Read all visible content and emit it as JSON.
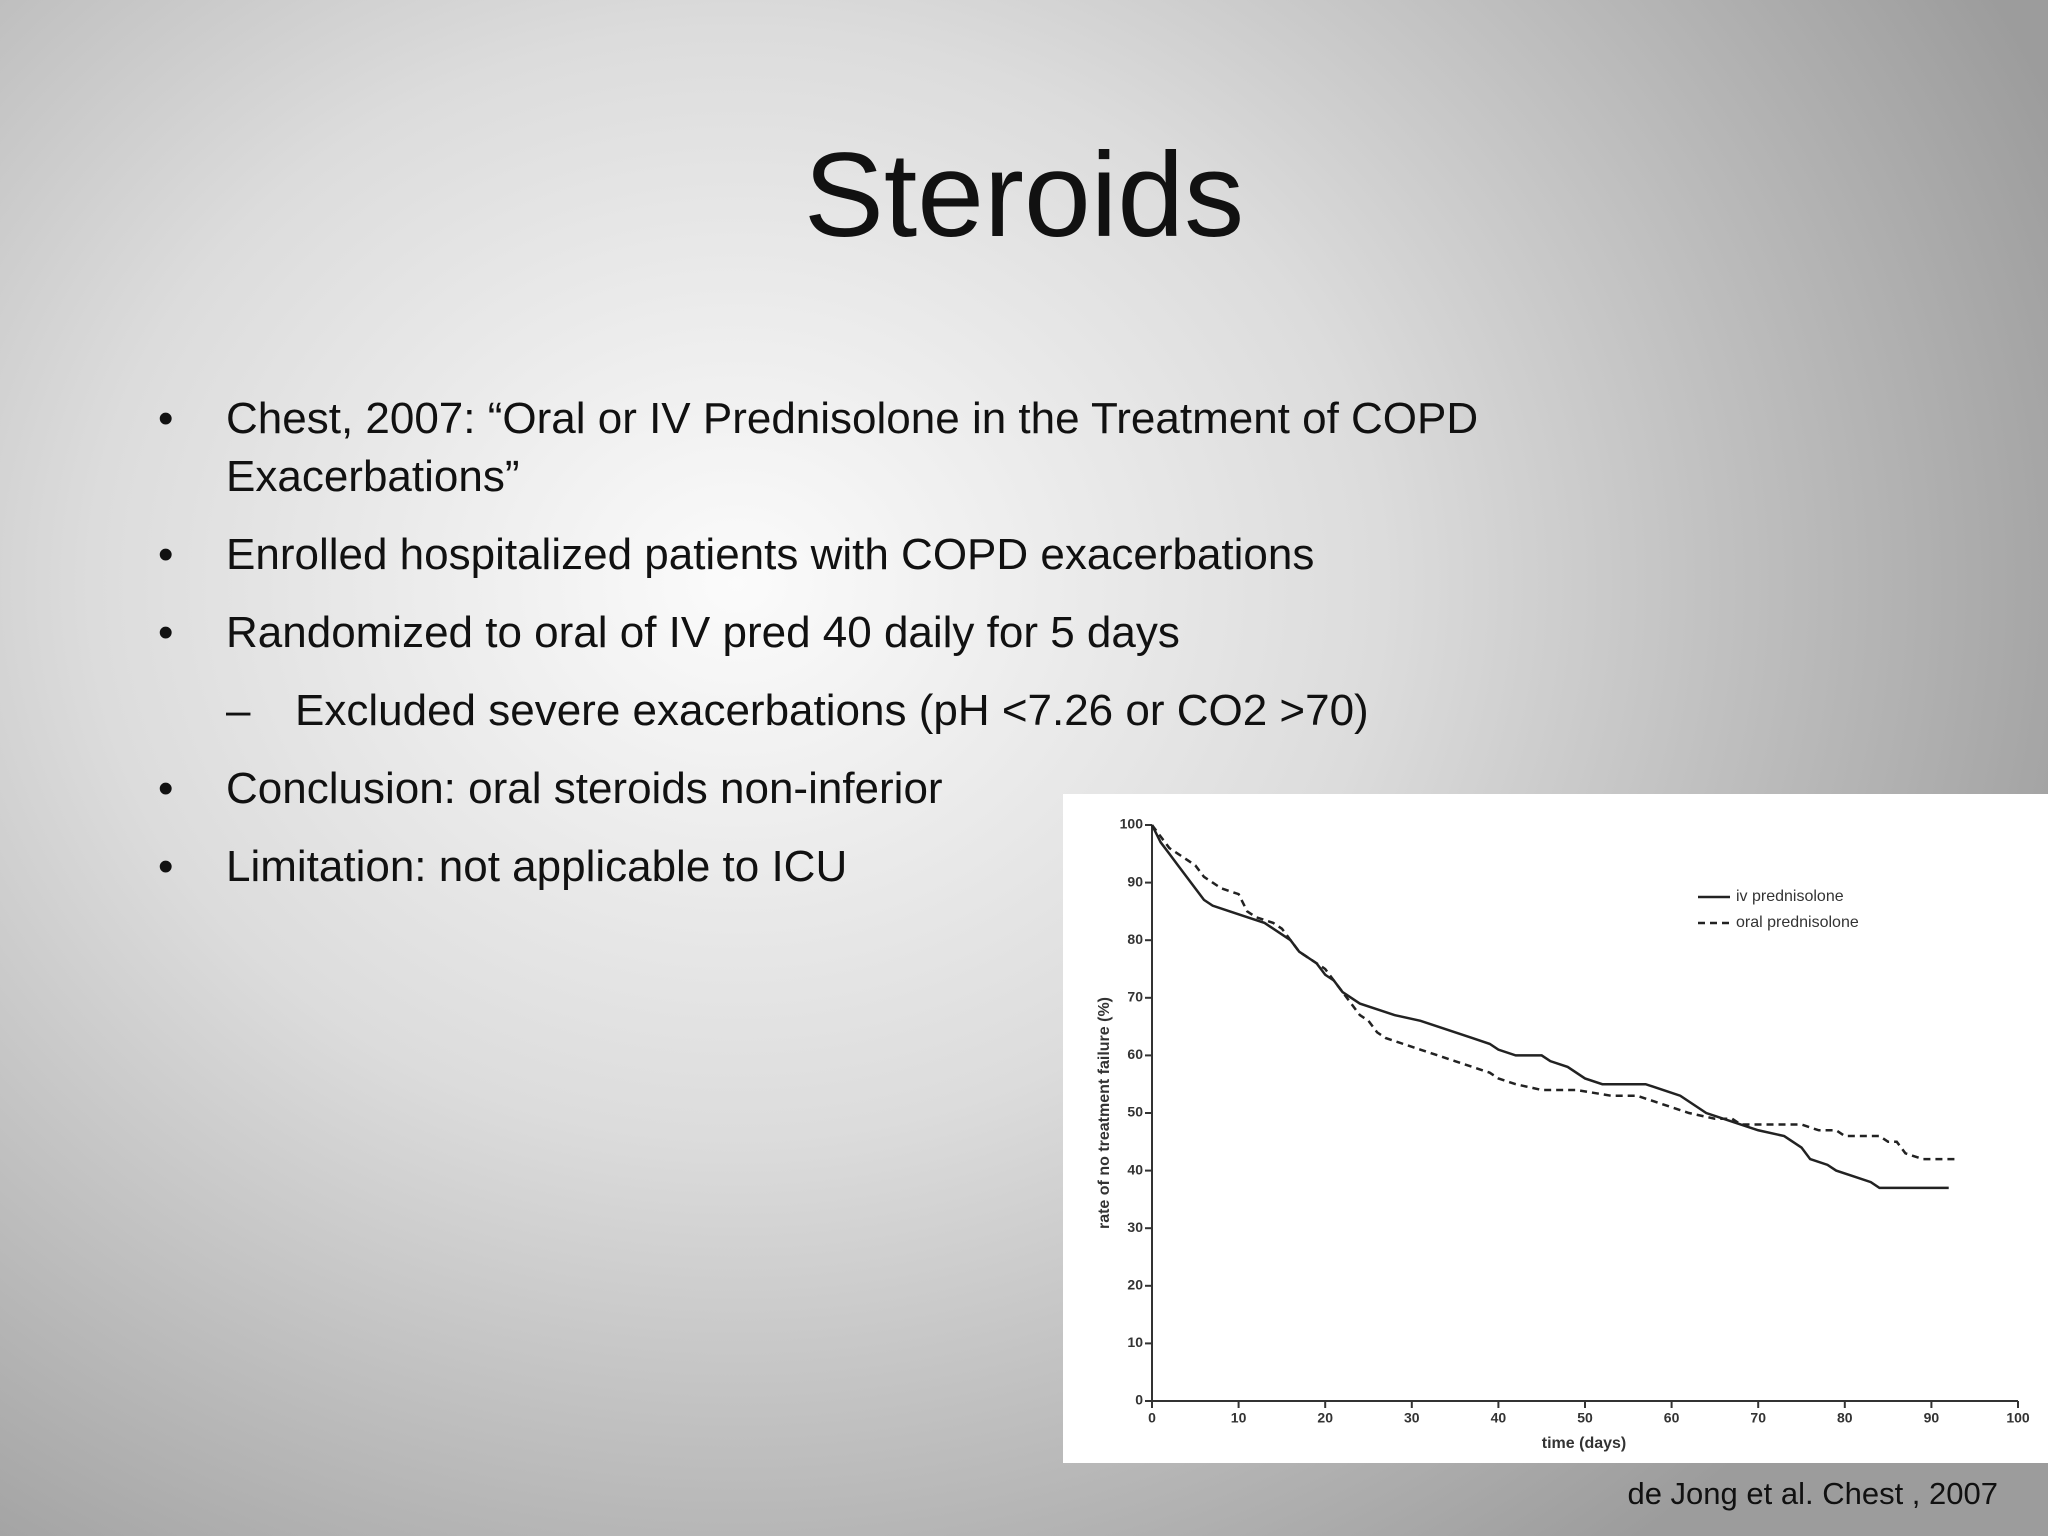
{
  "slide": {
    "title": "Steroids",
    "bullets": [
      {
        "text": "Chest, 2007: “Oral or IV Prednisolone in the Treatment of COPD Exacerbations”"
      },
      {
        "text": "Enrolled hospitalized patients with COPD exacerbations"
      },
      {
        "text": "Randomized to oral of IV pred 40 daily for 5 days",
        "children": [
          "Excluded severe exacerbations (pH <7.26 or CO2 >70)"
        ]
      },
      {
        "text": "Conclusion: oral steroids non-inferior"
      },
      {
        "text": "Limitation: not applicable to ICU"
      }
    ],
    "citation": "de Jong et al. Chest , 2007"
  },
  "chart_data": {
    "type": "line",
    "x_label": "time (days)",
    "y_label": "rate of no treatment failure (%)",
    "xlim": [
      0,
      100
    ],
    "xticks": [
      0,
      10,
      20,
      30,
      40,
      50,
      60,
      70,
      80,
      90,
      100
    ],
    "ylim": [
      0,
      100
    ],
    "yticks": [
      0,
      10,
      20,
      30,
      40,
      50,
      60,
      70,
      80,
      90,
      100
    ],
    "series": [
      {
        "name": "iv prednisolone",
        "color": "#222222",
        "dash": "none",
        "x": [
          0,
          1,
          2,
          3,
          4,
          5,
          6,
          7,
          9,
          11,
          13,
          15,
          16,
          17,
          18,
          19,
          20,
          21,
          22,
          23,
          24,
          26,
          28,
          31,
          33,
          35,
          37,
          39,
          40,
          42,
          45,
          46,
          48,
          50,
          52,
          57,
          59,
          61,
          62,
          63,
          64,
          66,
          68,
          70,
          73,
          74,
          75,
          76,
          78,
          79,
          81,
          83,
          84,
          92
        ],
        "values": [
          100,
          97,
          95,
          93,
          91,
          89,
          87,
          86,
          85,
          84,
          83,
          81,
          80,
          78,
          77,
          76,
          74,
          73,
          71,
          70,
          69,
          68,
          67,
          66,
          65,
          64,
          63,
          62,
          61,
          60,
          60,
          59,
          58,
          56,
          55,
          55,
          54,
          53,
          52,
          51,
          50,
          49,
          48,
          47,
          46,
          45,
          44,
          42,
          41,
          40,
          39,
          38,
          37,
          37
        ]
      },
      {
        "name": "oral prednisolone",
        "color": "#222222",
        "dash": "7,5",
        "x": [
          0,
          1,
          2,
          3,
          4,
          5,
          6,
          7,
          8,
          10,
          11,
          12,
          14,
          15,
          16,
          17,
          18,
          19,
          20,
          21,
          22,
          23,
          24,
          25,
          26,
          27,
          29,
          31,
          33,
          35,
          37,
          39,
          40,
          42,
          45,
          49,
          53,
          56,
          58,
          60,
          62,
          65,
          67,
          68,
          75,
          77,
          79,
          80,
          84,
          85,
          86,
          87,
          89,
          93
        ],
        "values": [
          100,
          98,
          96,
          95,
          94,
          93,
          91,
          90,
          89,
          88,
          85,
          84,
          83,
          82,
          80,
          78,
          77,
          76,
          75,
          73,
          71,
          69,
          67,
          66,
          64,
          63,
          62,
          61,
          60,
          59,
          58,
          57,
          56,
          55,
          54,
          54,
          53,
          53,
          52,
          51,
          50,
          49,
          49,
          48,
          48,
          47,
          47,
          46,
          46,
          45,
          45,
          43,
          42,
          42
        ]
      }
    ],
    "legend": "upper right"
  }
}
